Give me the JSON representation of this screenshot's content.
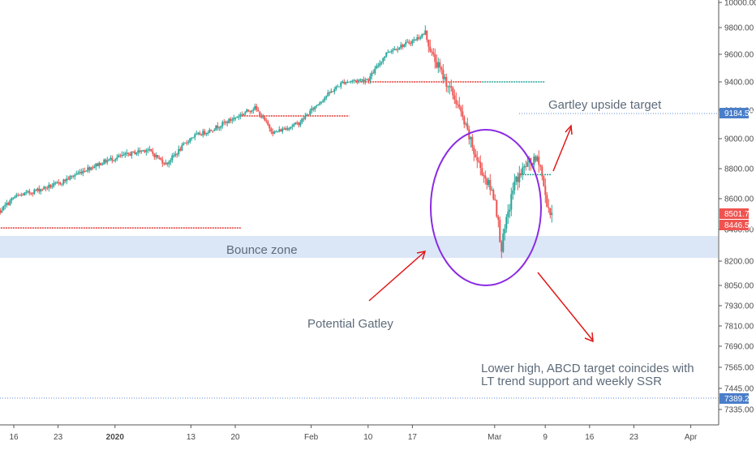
{
  "chart_data": {
    "type": "candlestick",
    "title": "",
    "xlabel": "",
    "ylabel": "",
    "ylim": [
      7300,
      10000
    ],
    "y_scale": "log",
    "x_tick_labels": [
      "16",
      "23",
      "2020",
      "13",
      "20",
      "Feb",
      "10",
      "17",
      "Mar",
      "9",
      "16",
      "23",
      "Apr"
    ],
    "y_tick_labels": [
      "10000.00",
      "9800.00",
      "9600.00",
      "9400.00",
      "9200.00",
      "9000.00",
      "8800.00",
      "8600.00",
      "8400.00",
      "8200.00",
      "8050.00",
      "7930.00",
      "7810.00",
      "7690.00",
      "7565.00",
      "7445.00",
      "7335.00"
    ],
    "y_ticks": [
      10000,
      9800,
      9600,
      9400,
      9200,
      9000,
      8800,
      8600,
      8400,
      8200,
      8050,
      7930,
      7810,
      7690,
      7565,
      7445,
      7335
    ],
    "price_path": [
      [
        "2019-12-12",
        8450
      ],
      [
        "2019-12-16",
        8610
      ],
      [
        "2019-12-23",
        8700
      ],
      [
        "2019-12-27",
        8790
      ],
      [
        "2019-12-31",
        8860
      ],
      [
        "2020-01-06",
        8930
      ],
      [
        "2020-01-09",
        8830
      ],
      [
        "2020-01-13",
        9010
      ],
      [
        "2020-01-16",
        9060
      ],
      [
        "2020-01-20",
        9150
      ],
      [
        "2020-01-23",
        9220
      ],
      [
        "2020-01-26",
        9040
      ],
      [
        "2020-01-30",
        9110
      ],
      [
        "2020-02-03",
        9290
      ],
      [
        "2020-02-06",
        9400
      ],
      [
        "2020-02-10",
        9420
      ],
      [
        "2020-02-13",
        9620
      ],
      [
        "2020-02-17",
        9700
      ],
      [
        "2020-02-19",
        9760
      ],
      [
        "2020-02-20",
        9600
      ],
      [
        "2020-02-24",
        9250
      ],
      [
        "2020-02-27",
        8870
      ],
      [
        "2020-03-01",
        8600
      ],
      [
        "2020-03-02",
        8280
      ],
      [
        "2020-03-04",
        8700
      ],
      [
        "2020-03-06",
        8830
      ],
      [
        "2020-03-08",
        8860
      ],
      [
        "2020-03-09",
        8600
      ],
      [
        "2020-03-10",
        8470
      ]
    ],
    "horizontal_levels": [
      {
        "price": 8410,
        "from": "2019-12-12",
        "to": "2020-01-21",
        "color": "#e53935"
      },
      {
        "price": 9160,
        "from": "2020-01-21",
        "to": "2020-02-07",
        "color": "#e53935"
      },
      {
        "price": 9400,
        "from": "2020-02-08",
        "to": "2020-02-28",
        "color": "#e53935"
      },
      {
        "price": 9400,
        "from": "2020-02-28",
        "to": "2020-03-09",
        "color": "#26a69a"
      },
      {
        "price": 8760,
        "from": "2020-03-05",
        "to": "2020-03-10",
        "color": "#26a69a"
      }
    ],
    "price_tags": [
      {
        "label": "9184.50",
        "color": "#4a7ec9"
      },
      {
        "label": "8501.75",
        "color": "#ef5350"
      },
      {
        "label": "8446.50",
        "color": "#ef5350"
      },
      {
        "label": "7389.25",
        "color": "#4a7ec9"
      }
    ],
    "colors": {
      "up": "#26a69a",
      "down": "#ef5350",
      "zone": "#dbe6f7",
      "circle": "#8a2be2",
      "arrow": "#e01818",
      "dotted": "#5b8bd6"
    },
    "annotations": [
      {
        "id": "gartley-target",
        "text": "Gartley upside target"
      },
      {
        "id": "bounce-zone",
        "text": "Bounce zone"
      },
      {
        "id": "potential-gatley",
        "text": "Potential Gatley"
      },
      {
        "id": "lower-high-1",
        "text": "Lower high, ABCD target coincides with"
      },
      {
        "id": "lower-high-2",
        "text": "LT trend support and weekly SSR"
      }
    ]
  }
}
